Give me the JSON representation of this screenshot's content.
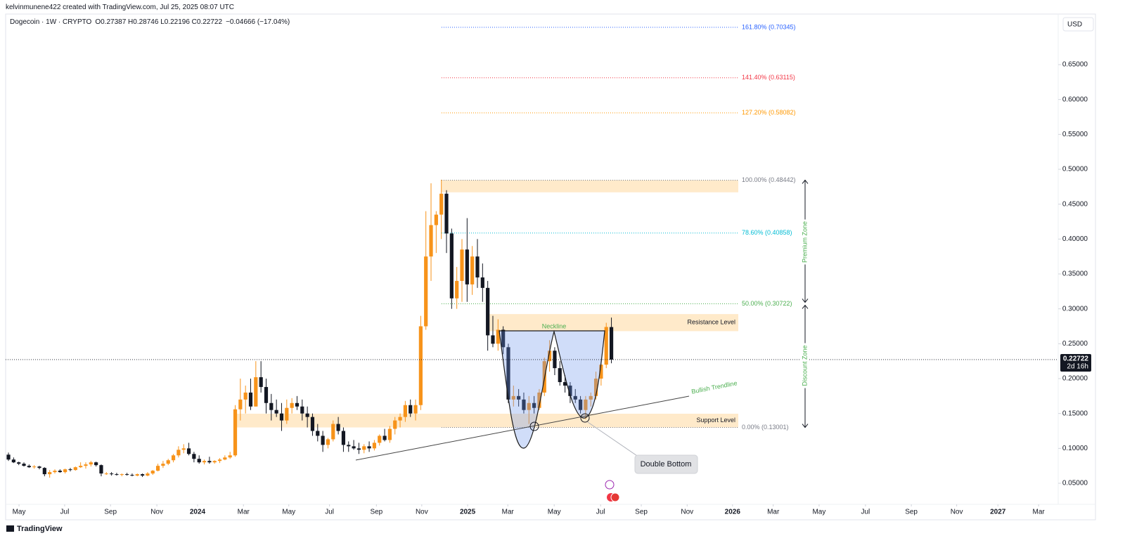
{
  "header": {
    "credit": "kelvinmunene422 created with TradingView.com, Jul 25, 2025 08:07 UTC",
    "symbol": "Dogecoin · 1W · CRYPTO",
    "ohlc": "O0.27387 H0.28746 L0.22196 C0.22722",
    "change": "−0.04666 (−17.04%)",
    "currency": "USD",
    "branding": "TradingView"
  },
  "chart_data": {
    "type": "candlestick",
    "up_color": "#f7931a",
    "down_color": "#131722",
    "open": [
      0.091,
      0.084,
      0.08,
      0.078,
      0.075,
      0.073,
      0.074,
      0.072,
      0.063,
      0.066,
      0.068,
      0.066,
      0.07,
      0.069,
      0.073,
      0.075,
      0.077,
      0.08,
      0.076,
      0.064,
      0.064,
      0.063,
      0.062,
      0.063,
      0.062,
      0.061,
      0.063,
      0.061,
      0.064,
      0.068,
      0.075,
      0.078,
      0.083,
      0.09,
      0.098,
      0.1,
      0.092,
      0.085,
      0.08,
      0.082,
      0.08,
      0.082,
      0.084,
      0.087,
      0.09,
      0.156,
      0.17,
      0.18,
      0.16,
      0.202,
      0.188,
      0.165,
      0.155,
      0.15,
      0.14,
      0.158,
      0.165,
      0.16,
      0.15,
      0.145,
      0.125,
      0.118,
      0.105,
      0.113,
      0.135,
      0.125,
      0.105,
      0.103,
      0.1,
      0.098,
      0.103,
      0.1,
      0.108,
      0.118,
      0.112,
      0.128,
      0.14,
      0.145,
      0.162,
      0.15,
      0.162,
      0.275,
      0.375,
      0.42,
      0.435,
      0.465,
      0.408,
      0.315,
      0.34,
      0.385,
      0.335,
      0.375,
      0.345,
      0.33,
      0.262,
      0.25,
      0.27,
      0.245,
      0.17,
      0.175,
      0.17,
      0.155,
      0.165,
      0.158,
      0.18,
      0.225,
      0.24,
      0.215,
      0.195,
      0.19,
      0.175,
      0.17,
      0.155,
      0.17,
      0.175,
      0.2,
      0.22,
      0.27387
    ],
    "high": [
      0.094,
      0.087,
      0.081,
      0.08,
      0.077,
      0.076,
      0.075,
      0.073,
      0.069,
      0.07,
      0.07,
      0.071,
      0.072,
      0.074,
      0.08,
      0.08,
      0.082,
      0.081,
      0.077,
      0.066,
      0.066,
      0.065,
      0.064,
      0.065,
      0.064,
      0.064,
      0.064,
      0.066,
      0.069,
      0.078,
      0.082,
      0.085,
      0.092,
      0.103,
      0.106,
      0.108,
      0.095,
      0.09,
      0.084,
      0.088,
      0.083,
      0.086,
      0.09,
      0.095,
      0.162,
      0.2,
      0.19,
      0.2,
      0.225,
      0.225,
      0.2,
      0.178,
      0.17,
      0.165,
      0.17,
      0.172,
      0.175,
      0.17,
      0.16,
      0.15,
      0.135,
      0.125,
      0.115,
      0.14,
      0.145,
      0.13,
      0.11,
      0.112,
      0.108,
      0.106,
      0.11,
      0.112,
      0.12,
      0.128,
      0.132,
      0.145,
      0.15,
      0.168,
      0.17,
      0.17,
      0.29,
      0.44,
      0.48,
      0.44,
      0.485,
      0.47,
      0.415,
      0.36,
      0.4,
      0.43,
      0.39,
      0.4,
      0.365,
      0.34,
      0.29,
      0.285,
      0.275,
      0.25,
      0.19,
      0.185,
      0.18,
      0.175,
      0.175,
      0.185,
      0.23,
      0.255,
      0.245,
      0.225,
      0.205,
      0.195,
      0.185,
      0.175,
      0.175,
      0.18,
      0.21,
      0.225,
      0.28,
      0.28746
    ],
    "low": [
      0.082,
      0.079,
      0.076,
      0.074,
      0.072,
      0.071,
      0.07,
      0.06,
      0.058,
      0.064,
      0.065,
      0.064,
      0.067,
      0.068,
      0.072,
      0.071,
      0.074,
      0.074,
      0.06,
      0.062,
      0.061,
      0.061,
      0.06,
      0.061,
      0.06,
      0.06,
      0.059,
      0.06,
      0.062,
      0.067,
      0.072,
      0.076,
      0.08,
      0.087,
      0.093,
      0.09,
      0.08,
      0.078,
      0.077,
      0.078,
      0.078,
      0.079,
      0.083,
      0.085,
      0.088,
      0.14,
      0.15,
      0.155,
      0.16,
      0.18,
      0.15,
      0.14,
      0.145,
      0.125,
      0.135,
      0.15,
      0.155,
      0.14,
      0.13,
      0.118,
      0.11,
      0.095,
      0.1,
      0.11,
      0.12,
      0.095,
      0.095,
      0.098,
      0.092,
      0.093,
      0.095,
      0.097,
      0.104,
      0.11,
      0.108,
      0.12,
      0.13,
      0.138,
      0.145,
      0.14,
      0.155,
      0.27,
      0.34,
      0.38,
      0.4,
      0.38,
      0.3,
      0.3,
      0.31,
      0.31,
      0.32,
      0.33,
      0.31,
      0.24,
      0.245,
      0.24,
      0.235,
      0.165,
      0.16,
      0.16,
      0.15,
      0.135,
      0.15,
      0.155,
      0.175,
      0.21,
      0.205,
      0.19,
      0.18,
      0.165,
      0.165,
      0.15,
      0.142,
      0.16,
      0.17,
      0.19,
      0.215,
      0.22196
    ],
    "close": [
      0.084,
      0.08,
      0.078,
      0.075,
      0.073,
      0.074,
      0.072,
      0.063,
      0.066,
      0.068,
      0.066,
      0.07,
      0.069,
      0.073,
      0.075,
      0.077,
      0.08,
      0.076,
      0.064,
      0.064,
      0.063,
      0.062,
      0.063,
      0.062,
      0.061,
      0.063,
      0.061,
      0.064,
      0.068,
      0.075,
      0.078,
      0.083,
      0.09,
      0.098,
      0.1,
      0.092,
      0.085,
      0.08,
      0.082,
      0.08,
      0.082,
      0.084,
      0.087,
      0.09,
      0.156,
      0.17,
      0.18,
      0.16,
      0.202,
      0.188,
      0.165,
      0.155,
      0.15,
      0.14,
      0.158,
      0.165,
      0.16,
      0.15,
      0.145,
      0.125,
      0.118,
      0.105,
      0.113,
      0.135,
      0.125,
      0.105,
      0.103,
      0.1,
      0.098,
      0.103,
      0.1,
      0.108,
      0.118,
      0.112,
      0.128,
      0.14,
      0.145,
      0.162,
      0.15,
      0.162,
      0.275,
      0.375,
      0.42,
      0.435,
      0.465,
      0.408,
      0.315,
      0.34,
      0.385,
      0.335,
      0.375,
      0.345,
      0.33,
      0.262,
      0.25,
      0.27,
      0.245,
      0.17,
      0.175,
      0.17,
      0.155,
      0.165,
      0.158,
      0.18,
      0.225,
      0.24,
      0.215,
      0.195,
      0.19,
      0.175,
      0.17,
      0.155,
      0.17,
      0.175,
      0.2,
      0.22,
      0.274,
      0.22722
    ],
    "xlim": [
      -0.55,
      203.7
    ],
    "xticks": [
      {
        "value": 2.05,
        "label": "May"
      },
      {
        "value": 10.9,
        "label": "Jul"
      },
      {
        "value": 19.8,
        "label": "Sep"
      },
      {
        "value": 28.8,
        "label": "Nov"
      },
      {
        "value": 36.7,
        "label": "2024"
      },
      {
        "value": 45.6,
        "label": "Mar"
      },
      {
        "value": 54.4,
        "label": "May"
      },
      {
        "value": 62.3,
        "label": "Jul"
      },
      {
        "value": 71.4,
        "label": "Sep"
      },
      {
        "value": 80.2,
        "label": "Nov"
      },
      {
        "value": 89.1,
        "label": "2025"
      },
      {
        "value": 96.9,
        "label": "Mar"
      },
      {
        "value": 105.9,
        "label": "May"
      },
      {
        "value": 114.9,
        "label": "Jul"
      },
      {
        "value": 122.8,
        "label": "Sep"
      },
      {
        "value": 131.7,
        "label": "Nov"
      },
      {
        "value": 140.5,
        "label": "2026"
      },
      {
        "value": 148.4,
        "label": "Mar"
      },
      {
        "value": 157.3,
        "label": "May"
      },
      {
        "value": 166.3,
        "label": "Jul"
      },
      {
        "value": 175.2,
        "label": "Sep"
      },
      {
        "value": 184.0,
        "label": "Nov"
      },
      {
        "value": 192.0,
        "label": "2027"
      },
      {
        "value": 199.9,
        "label": "Mar"
      }
    ],
    "ylim": [
      0.0198,
      0.7426
    ],
    "yticks": [
      {
        "value": 0.05,
        "label": "0.05000"
      },
      {
        "value": 0.1,
        "label": "0.10000"
      },
      {
        "value": 0.15,
        "label": "0.15000"
      },
      {
        "value": 0.2,
        "label": "0.20000"
      },
      {
        "value": 0.25,
        "label": "0.25000"
      },
      {
        "value": 0.3,
        "label": "0.30000"
      },
      {
        "value": 0.35,
        "label": "0.35000"
      },
      {
        "value": 0.4,
        "label": "0.40000"
      },
      {
        "value": 0.45,
        "label": "0.45000"
      },
      {
        "value": 0.5,
        "label": "0.50000"
      },
      {
        "value": 0.55,
        "label": "0.55000"
      },
      {
        "value": 0.6,
        "label": "0.60000"
      },
      {
        "value": 0.65,
        "label": "0.65000"
      }
    ],
    "countdown": "2d 16h",
    "fib_levels": [
      {
        "label": "161.80% (0.70345)",
        "value": 0.70345,
        "color": "#2962ff"
      },
      {
        "label": "141.40% (0.63115)",
        "value": 0.63115,
        "color": "#f23645"
      },
      {
        "label": "127.20% (0.58082)",
        "value": 0.58082,
        "color": "#ff9800"
      },
      {
        "label": "100.00% (0.48442)",
        "value": 0.48442,
        "color": "#787b86"
      },
      {
        "label": "78.60% (0.40858)",
        "value": 0.40858,
        "color": "#00bcd4"
      },
      {
        "label": "50.00% (0.30722)",
        "value": 0.30722,
        "color": "#4caf50"
      },
      {
        "label": "0.00% (0.13001)",
        "value": 0.13001,
        "color": "#787b86"
      }
    ],
    "zones": [
      {
        "top": 0.48442,
        "bottom": 0.467
      },
      {
        "label": "Resistance Level",
        "top": 0.2925,
        "bottom": 0.268
      },
      {
        "label": "Support Level",
        "top": 0.1497,
        "bottom": 0.13001
      }
    ],
    "annotations": {
      "neckline": "Neckline",
      "trendline": "Bullish Trendline",
      "double_bottom": "Double Bottom",
      "premium": "Premium Zone",
      "discount": "Discount Zone"
    }
  }
}
